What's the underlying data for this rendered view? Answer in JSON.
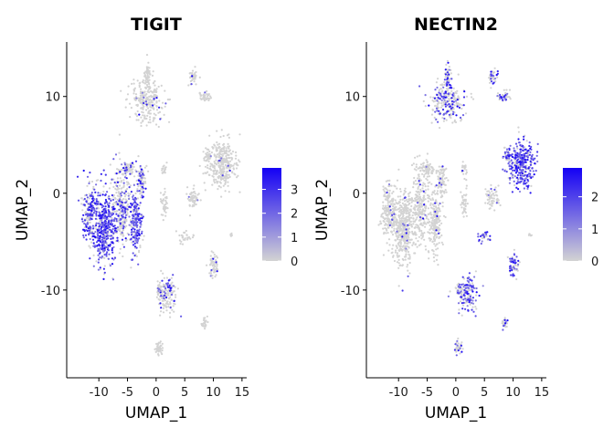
{
  "chart_data": [
    {
      "type": "scatter",
      "title": "TIGIT",
      "xlabel": "UMAP_1",
      "ylabel": "UMAP_2",
      "x_ticks": [
        -10,
        -5,
        0,
        5,
        10,
        15
      ],
      "x_tick_labels": [
        "-10",
        "-5",
        "0",
        "5",
        "10",
        "15"
      ],
      "y_ticks": [
        -10,
        0,
        10
      ],
      "y_tick_labels": [
        "-10",
        "0",
        "10"
      ],
      "xlim": [
        -14.5,
        15.5
      ],
      "ylim": [
        -18.5,
        14.5
      ],
      "grid": false,
      "legend": {
        "position": "right",
        "ticks": [
          0,
          1,
          2,
          3
        ],
        "tick_labels": [
          "0",
          "1",
          "2",
          "3"
        ],
        "max": 3.9,
        "low_color": "#d3d3d3",
        "high_color": "#1400f5"
      },
      "clusters": [
        {
          "x": -9.0,
          "y": -3.5,
          "sx": 1.4,
          "sy": 2.8,
          "n": 420,
          "expr": 0.75
        },
        {
          "x": -11.5,
          "y": -2.0,
          "sx": 1.0,
          "sy": 2.0,
          "n": 200,
          "expr": 0.55
        },
        {
          "x": -6.0,
          "y": -1.5,
          "sx": 1.2,
          "sy": 3.0,
          "n": 260,
          "expr": 0.35
        },
        {
          "x": -3.5,
          "y": -3.0,
          "sx": 0.8,
          "sy": 2.5,
          "n": 200,
          "expr": 0.7
        },
        {
          "x": -2.5,
          "y": 1.5,
          "sx": 0.6,
          "sy": 1.2,
          "n": 80,
          "expr": 0.35
        },
        {
          "x": -5.0,
          "y": 2.5,
          "sx": 0.9,
          "sy": 0.5,
          "n": 60,
          "expr": 0.3
        },
        {
          "x": -1.5,
          "y": 9.5,
          "sx": 2.2,
          "sy": 1.6,
          "n": 240,
          "expr": 0.05
        },
        {
          "x": -1.5,
          "y": 12.0,
          "sx": 0.4,
          "sy": 1.0,
          "n": 50,
          "expr": 0.03
        },
        {
          "x": 6.5,
          "y": 12.0,
          "sx": 0.6,
          "sy": 0.6,
          "n": 40,
          "expr": 0.02
        },
        {
          "x": 8.5,
          "y": 10.0,
          "sx": 0.8,
          "sy": 0.4,
          "n": 40,
          "expr": 0.02
        },
        {
          "x": 11.5,
          "y": 3.0,
          "sx": 1.8,
          "sy": 1.8,
          "n": 320,
          "expr": 0.03
        },
        {
          "x": 9.0,
          "y": 3.8,
          "sx": 0.5,
          "sy": 0.5,
          "n": 40,
          "expr": 0.02
        },
        {
          "x": 6.5,
          "y": -0.5,
          "sx": 0.8,
          "sy": 0.8,
          "n": 60,
          "expr": 0.02
        },
        {
          "x": 1.5,
          "y": 2.5,
          "sx": 0.3,
          "sy": 0.5,
          "n": 20,
          "expr": 0.02
        },
        {
          "x": 1.5,
          "y": -1.0,
          "sx": 0.4,
          "sy": 1.0,
          "n": 40,
          "expr": 0.02
        },
        {
          "x": 5.0,
          "y": -4.5,
          "sx": 0.8,
          "sy": 0.4,
          "n": 30,
          "expr": 0.02
        },
        {
          "x": 10.0,
          "y": -7.5,
          "sx": 0.6,
          "sy": 0.9,
          "n": 60,
          "expr": 0.02
        },
        {
          "x": 13.0,
          "y": -4.3,
          "sx": 0.2,
          "sy": 0.2,
          "n": 6,
          "expr": 0.02
        },
        {
          "x": 2.0,
          "y": -10.5,
          "sx": 1.2,
          "sy": 1.4,
          "n": 140,
          "expr": 0.2
        },
        {
          "x": 0.5,
          "y": -10.0,
          "sx": 0.4,
          "sy": 0.4,
          "n": 20,
          "expr": 0.3
        },
        {
          "x": 8.5,
          "y": -13.5,
          "sx": 0.4,
          "sy": 0.4,
          "n": 25,
          "expr": 0.02
        },
        {
          "x": 0.5,
          "y": -16.0,
          "sx": 0.5,
          "sy": 0.5,
          "n": 40,
          "expr": 0.02
        }
      ]
    },
    {
      "type": "scatter",
      "title": "NECTIN2",
      "xlabel": "UMAP_1",
      "ylabel": "UMAP_2",
      "x_ticks": [
        -10,
        -5,
        0,
        5,
        10,
        15
      ],
      "x_tick_labels": [
        "-10",
        "-5",
        "0",
        "5",
        "10",
        "15"
      ],
      "y_ticks": [
        -10,
        0,
        10
      ],
      "y_tick_labels": [
        "-10",
        "0",
        "10"
      ],
      "xlim": [
        -14.5,
        15.5
      ],
      "ylim": [
        -18.5,
        14.5
      ],
      "grid": false,
      "legend": {
        "position": "right",
        "ticks": [
          0,
          1,
          2
        ],
        "tick_labels": [
          "0",
          "1",
          "2"
        ],
        "max": 2.9,
        "low_color": "#d3d3d3",
        "high_color": "#1400f5"
      },
      "clusters": [
        {
          "x": -9.0,
          "y": -3.5,
          "sx": 1.4,
          "sy": 2.8,
          "n": 420,
          "expr": 0.03
        },
        {
          "x": -11.5,
          "y": -2.0,
          "sx": 1.0,
          "sy": 2.0,
          "n": 200,
          "expr": 0.03
        },
        {
          "x": -6.0,
          "y": -1.5,
          "sx": 1.2,
          "sy": 3.0,
          "n": 260,
          "expr": 0.05
        },
        {
          "x": -3.5,
          "y": -3.0,
          "sx": 0.8,
          "sy": 2.5,
          "n": 200,
          "expr": 0.04
        },
        {
          "x": -2.5,
          "y": 1.5,
          "sx": 0.6,
          "sy": 1.2,
          "n": 80,
          "expr": 0.05
        },
        {
          "x": -5.0,
          "y": 2.5,
          "sx": 0.9,
          "sy": 0.5,
          "n": 60,
          "expr": 0.05
        },
        {
          "x": -1.5,
          "y": 9.5,
          "sx": 2.2,
          "sy": 1.6,
          "n": 240,
          "expr": 0.35
        },
        {
          "x": -1.5,
          "y": 12.0,
          "sx": 0.4,
          "sy": 1.0,
          "n": 50,
          "expr": 0.3
        },
        {
          "x": 6.5,
          "y": 12.0,
          "sx": 0.6,
          "sy": 0.6,
          "n": 40,
          "expr": 0.5
        },
        {
          "x": 8.5,
          "y": 10.0,
          "sx": 0.8,
          "sy": 0.4,
          "n": 40,
          "expr": 0.4
        },
        {
          "x": 11.5,
          "y": 3.0,
          "sx": 1.8,
          "sy": 1.8,
          "n": 320,
          "expr": 0.75
        },
        {
          "x": 9.0,
          "y": 3.8,
          "sx": 0.5,
          "sy": 0.5,
          "n": 40,
          "expr": 0.6
        },
        {
          "x": 6.5,
          "y": -0.5,
          "sx": 0.8,
          "sy": 0.8,
          "n": 60,
          "expr": 0.1
        },
        {
          "x": 1.5,
          "y": 2.5,
          "sx": 0.3,
          "sy": 0.5,
          "n": 20,
          "expr": 0.05
        },
        {
          "x": 1.5,
          "y": -1.0,
          "sx": 0.4,
          "sy": 1.0,
          "n": 40,
          "expr": 0.05
        },
        {
          "x": 5.0,
          "y": -4.5,
          "sx": 0.8,
          "sy": 0.4,
          "n": 30,
          "expr": 0.6
        },
        {
          "x": 10.0,
          "y": -7.5,
          "sx": 0.6,
          "sy": 0.9,
          "n": 60,
          "expr": 0.55
        },
        {
          "x": 13.0,
          "y": -4.3,
          "sx": 0.2,
          "sy": 0.2,
          "n": 6,
          "expr": 0.1
        },
        {
          "x": 2.0,
          "y": -10.5,
          "sx": 1.2,
          "sy": 1.4,
          "n": 140,
          "expr": 0.55
        },
        {
          "x": 0.5,
          "y": -10.0,
          "sx": 0.4,
          "sy": 0.4,
          "n": 20,
          "expr": 0.3
        },
        {
          "x": 8.5,
          "y": -13.5,
          "sx": 0.4,
          "sy": 0.4,
          "n": 25,
          "expr": 0.2
        },
        {
          "x": 0.5,
          "y": -16.0,
          "sx": 0.5,
          "sy": 0.5,
          "n": 40,
          "expr": 0.25
        }
      ]
    }
  ]
}
